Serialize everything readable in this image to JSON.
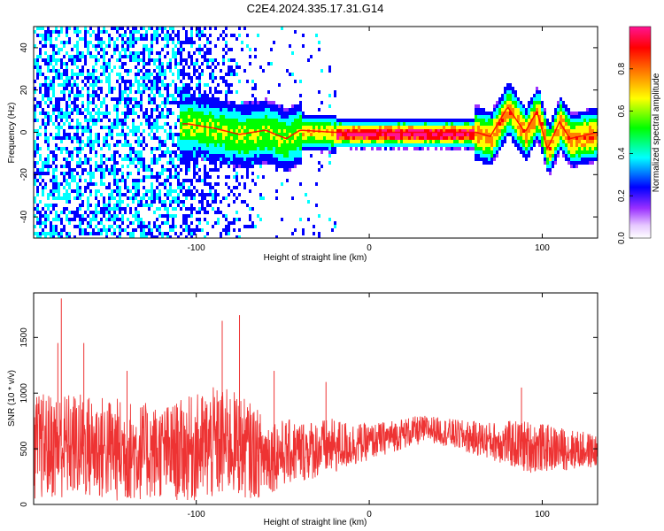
{
  "title": "C2E4.2024.335.17.31.G14",
  "chart_data": [
    {
      "type": "heatmap",
      "title": "C2E4.2024.335.17.31.G14",
      "xlabel": "Height of straight line (km)",
      "ylabel": "Frequency (Hz)",
      "xlim": [
        -194,
        132
      ],
      "ylim": [
        -50,
        50
      ],
      "xticks": [
        -100,
        0,
        100
      ],
      "yticks": [
        -40,
        -20,
        0,
        20,
        40
      ],
      "colorbar": {
        "label": "Normalized spectral amplitude",
        "range": [
          0.0,
          1.0
        ],
        "ticks": [
          "0.0",
          "0.2",
          "0.4",
          "0.6",
          "0.8"
        ],
        "colormap": [
          "#ffffff",
          "#9b30ff",
          "#0000ff",
          "#00ffff",
          "#00ff00",
          "#ffff00",
          "#ff8000",
          "#ff0000",
          "#ff1493"
        ]
      },
      "carrier_center_hz": [
        {
          "x": -105,
          "y": 4
        },
        {
          "x": -90,
          "y": 2
        },
        {
          "x": -75,
          "y": -1
        },
        {
          "x": -60,
          "y": 1
        },
        {
          "x": -48,
          "y": -3
        },
        {
          "x": -40,
          "y": 1
        },
        {
          "x": -20,
          "y": 0
        },
        {
          "x": 0,
          "y": 0
        },
        {
          "x": 40,
          "y": 0
        },
        {
          "x": 62,
          "y": 0
        },
        {
          "x": 70,
          "y": -2
        },
        {
          "x": 80,
          "y": 12
        },
        {
          "x": 90,
          "y": 0
        },
        {
          "x": 97,
          "y": 10
        },
        {
          "x": 103,
          "y": -8
        },
        {
          "x": 110,
          "y": 5
        },
        {
          "x": 116,
          "y": -3
        },
        {
          "x": 132,
          "y": 0
        }
      ]
    },
    {
      "type": "line",
      "xlabel": "Height of straight line (km)",
      "ylabel": "SNR (10 * v/v)",
      "xlim": [
        -194,
        132
      ],
      "ylim": [
        0,
        1900
      ],
      "xticks": [
        -100,
        0,
        100
      ],
      "yticks": [
        0,
        500,
        1000,
        1500
      ],
      "series": [
        {
          "color": "#ee3333",
          "mean": [
            {
              "x": -194,
              "y": 520
            },
            {
              "x": -170,
              "y": 530
            },
            {
              "x": -140,
              "y": 480
            },
            {
              "x": -115,
              "y": 470
            },
            {
              "x": -95,
              "y": 520
            },
            {
              "x": -80,
              "y": 560
            },
            {
              "x": -62,
              "y": 440
            },
            {
              "x": -40,
              "y": 480
            },
            {
              "x": -20,
              "y": 520
            },
            {
              "x": 0,
              "y": 560
            },
            {
              "x": 20,
              "y": 640
            },
            {
              "x": 35,
              "y": 680
            },
            {
              "x": 55,
              "y": 610
            },
            {
              "x": 75,
              "y": 560
            },
            {
              "x": 90,
              "y": 520
            },
            {
              "x": 110,
              "y": 500
            },
            {
              "x": 132,
              "y": 480
            }
          ],
          "spread": [
            {
              "x": -194,
              "y": 480
            },
            {
              "x": -150,
              "y": 480
            },
            {
              "x": -120,
              "y": 420
            },
            {
              "x": -90,
              "y": 520
            },
            {
              "x": -70,
              "y": 440
            },
            {
              "x": -50,
              "y": 300
            },
            {
              "x": -20,
              "y": 250
            },
            {
              "x": 0,
              "y": 160
            },
            {
              "x": 40,
              "y": 120
            },
            {
              "x": 70,
              "y": 170
            },
            {
              "x": 90,
              "y": 240
            },
            {
              "x": 132,
              "y": 150
            }
          ],
          "peaks": [
            {
              "x": -180,
              "y": 1450
            },
            {
              "x": -178,
              "y": 1850
            },
            {
              "x": -165,
              "y": 1450
            },
            {
              "x": -140,
              "y": 1200
            },
            {
              "x": -85,
              "y": 1650
            },
            {
              "x": -75,
              "y": 1700
            },
            {
              "x": -55,
              "y": 1200
            },
            {
              "x": -25,
              "y": 1100
            },
            {
              "x": 88,
              "y": 1050
            }
          ]
        }
      ]
    }
  ]
}
